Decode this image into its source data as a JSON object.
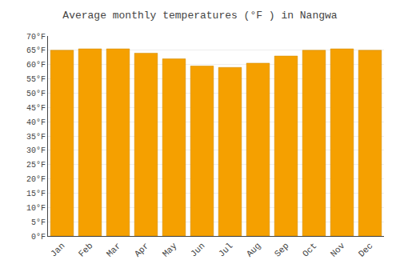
{
  "chart_data": {
    "type": "bar",
    "title": "Average monthly temperatures (°F ) in Nangwa",
    "categories": [
      "Jan",
      "Feb",
      "Mar",
      "Apr",
      "May",
      "Jun",
      "Jul",
      "Aug",
      "Sep",
      "Oct",
      "Nov",
      "Dec"
    ],
    "values": [
      65.0,
      65.5,
      65.5,
      64.0,
      62.0,
      59.5,
      59.0,
      60.5,
      63.0,
      65.0,
      65.5,
      65.0
    ],
    "color": "#F5A000",
    "ylim": [
      0,
      70
    ],
    "yticks": [
      {
        "value": 0,
        "label": "0°F"
      },
      {
        "value": 5,
        "label": "5°F"
      },
      {
        "value": 10,
        "label": "10°F"
      },
      {
        "value": 15,
        "label": "15°F"
      },
      {
        "value": 20,
        "label": "20°F"
      },
      {
        "value": 25,
        "label": "25°F"
      },
      {
        "value": 30,
        "label": "30°F"
      },
      {
        "value": 35,
        "label": "35°F"
      },
      {
        "value": 40,
        "label": "40°F"
      },
      {
        "value": 45,
        "label": "45°F"
      },
      {
        "value": 50,
        "label": "50°F"
      },
      {
        "value": 55,
        "label": "55°F"
      },
      {
        "value": 60,
        "label": "60°F"
      },
      {
        "value": 65,
        "label": "65°F"
      },
      {
        "value": 70,
        "label": "70°F"
      }
    ],
    "grid": true
  }
}
